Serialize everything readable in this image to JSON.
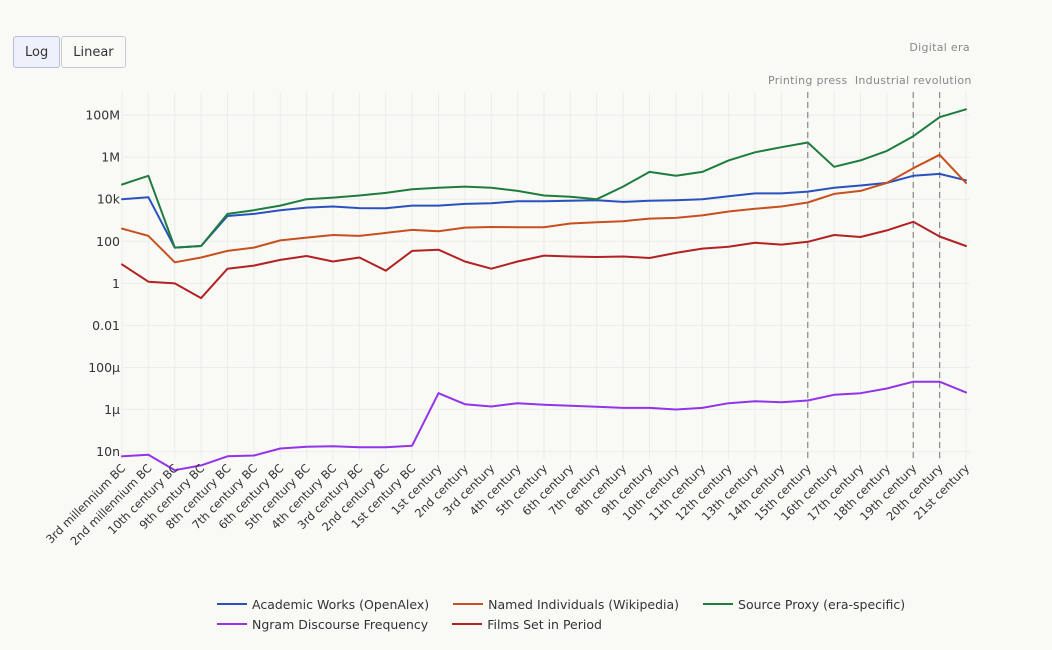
{
  "controls": {
    "log_label": "Log",
    "linear_label": "Linear",
    "active": "log"
  },
  "chart_data": {
    "type": "line",
    "yscale": "log",
    "ylim_log10": [
      -8.4,
      9.1
    ],
    "y_ticks": [
      {
        "value": 100000000.0,
        "label": "100M"
      },
      {
        "value": 1000000.0,
        "label": "1M"
      },
      {
        "value": 10000.0,
        "label": "10k"
      },
      {
        "value": 100,
        "label": "100"
      },
      {
        "value": 1,
        "label": "1"
      },
      {
        "value": 0.01,
        "label": "0.01"
      },
      {
        "value": 0.0001,
        "label": "100μ"
      },
      {
        "value": 1e-06,
        "label": "1μ"
      },
      {
        "value": 1e-08,
        "label": "10n"
      }
    ],
    "grid": true,
    "legend_position": "bottom",
    "categories": [
      "3rd millennium BC",
      "2nd millennium BC",
      "10th century BC",
      "9th century BC",
      "8th century BC",
      "7th century BC",
      "6th century BC",
      "5th century BC",
      "4th century BC",
      "3rd century BC",
      "2nd century BC",
      "1st century BC",
      "1st century",
      "2nd century",
      "3rd century",
      "4th century",
      "5th century",
      "6th century",
      "7th century",
      "8th century",
      "9th century",
      "10th century",
      "11th century",
      "12th century",
      "13th century",
      "14th century",
      "15th century",
      "16th century",
      "17th century",
      "18th century",
      "19th century",
      "20th century",
      "21st century"
    ],
    "annotations": [
      {
        "label": "Printing press",
        "category": "15th century",
        "row": 1
      },
      {
        "label": "Industrial revolution",
        "category": "19th century",
        "row": 1
      },
      {
        "label": "Digital era",
        "category": "20th century",
        "row": 0
      }
    ],
    "series": [
      {
        "name": "Academic Works (OpenAlex)",
        "color": "#2a52be",
        "values": [
          10000,
          12500,
          50,
          60,
          1600,
          2000,
          3000,
          4000,
          4500,
          3800,
          3700,
          5000,
          5000,
          6000,
          6500,
          8000,
          8000,
          8500,
          9000,
          7500,
          8500,
          9000,
          10000,
          14000,
          19000,
          19000,
          23000,
          35000,
          45000,
          60000,
          130000,
          160000,
          80000
        ]
      },
      {
        "name": "Named Individuals (Wikipedia)",
        "color": "#c8501e",
        "values": [
          400,
          180,
          10,
          17,
          35,
          50,
          110,
          150,
          200,
          180,
          250,
          350,
          300,
          450,
          480,
          470,
          470,
          700,
          800,
          900,
          1200,
          1300,
          1700,
          2600,
          3500,
          4500,
          7000,
          18000,
          25000,
          60000,
          300000,
          1300000,
          60000
        ]
      },
      {
        "name": "Source Proxy (era-specific)",
        "color": "#1e7d3e",
        "values": [
          50000,
          130000,
          50,
          60,
          2000,
          3000,
          5000,
          10000,
          12000,
          15000,
          20000,
          30000,
          35000,
          40000,
          35000,
          25000,
          15000,
          13000,
          10000,
          40000,
          200000,
          130000,
          200000,
          700000,
          1700000,
          3000000,
          5000000,
          350000,
          700000,
          2000000,
          10000000,
          80000000,
          190000000
        ]
      },
      {
        "name": "Ngram Discourse Frequency",
        "color": "#9333ea",
        "values": [
          6e-09,
          7e-09,
          1.3e-09,
          2.2e-09,
          6e-09,
          6.5e-09,
          1.4e-08,
          1.7e-08,
          1.8e-08,
          1.6e-08,
          1.6e-08,
          1.9e-08,
          6e-06,
          1.8e-06,
          1.4e-06,
          2e-06,
          1.7e-06,
          1.5e-06,
          1.35e-06,
          1.2e-06,
          1.2e-06,
          1e-06,
          1.2e-06,
          2e-06,
          2.5e-06,
          2.2e-06,
          2.7e-06,
          5e-06,
          6e-06,
          1e-05,
          2.1e-05,
          2.1e-05,
          6.5e-06
        ]
      },
      {
        "name": "Films Set in Period",
        "color": "#b22222",
        "values": [
          8,
          1.2,
          1.0,
          0.2,
          5,
          7,
          13,
          20,
          11,
          17,
          4,
          35,
          40,
          11,
          5,
          11,
          21,
          19,
          18,
          19,
          16,
          28,
          45,
          55,
          85,
          70,
          95,
          200,
          160,
          330,
          850,
          170,
          60
        ]
      }
    ]
  }
}
